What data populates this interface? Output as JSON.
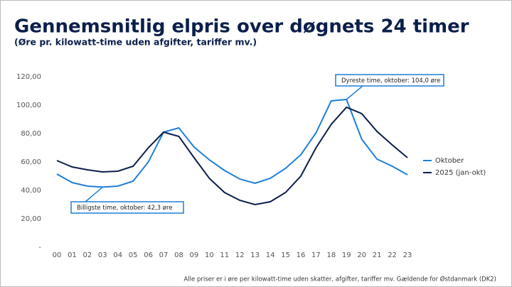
{
  "chart_data": {
    "type": "line",
    "title": "Gennemsnitlig elpris over døgnets 24 timer",
    "subtitle": "(Øre pr. kilowatt-time uden afgifter, tariffer mv.)",
    "categories": [
      "00",
      "01",
      "02",
      "03",
      "04",
      "05",
      "06",
      "07",
      "08",
      "09",
      "10",
      "11",
      "12",
      "13",
      "14",
      "15",
      "16",
      "17",
      "18",
      "19",
      "20",
      "21",
      "22",
      "23"
    ],
    "series": [
      {
        "name": "Oktober",
        "color": "#1f7fd6",
        "values": [
          51.5,
          45.5,
          43,
          42.3,
          43,
          46.5,
          60,
          81,
          84,
          70.5,
          61.5,
          54,
          48,
          45,
          48.5,
          55.5,
          65,
          80.5,
          103,
          104,
          76,
          62,
          57,
          51
        ]
      },
      {
        "name": "2025 (jan-okt)",
        "color": "#0b1f4b",
        "values": [
          61,
          56.5,
          54.5,
          53,
          53.5,
          57,
          70,
          81,
          78,
          63,
          48.5,
          38.5,
          33,
          30,
          32,
          38.5,
          50,
          70,
          86.5,
          98.5,
          94,
          81.5,
          72,
          63
        ]
      }
    ],
    "ylim": [
      0,
      120
    ],
    "yticks": [
      {
        "value": 0,
        "label": "-"
      },
      {
        "value": 20,
        "label": "20,00"
      },
      {
        "value": 40,
        "label": "40,00"
      },
      {
        "value": 60,
        "label": "60,00"
      },
      {
        "value": 80,
        "label": "80,00"
      },
      {
        "value": 100,
        "label": "100,00"
      },
      {
        "value": 120,
        "label": "120,00"
      }
    ],
    "grid": false,
    "legend": "right",
    "annotations": [
      "Billigste time, oktober: 42,3 øre",
      "Dyreste time, oktober: 104,0 øre"
    ],
    "footnote": "Alle priser er i øre per kilowatt-time uden skatter, afgifter, tariffer mv. Gældende for Østdanmark (DK2)"
  }
}
